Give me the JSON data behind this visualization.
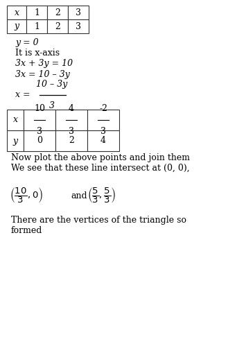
{
  "bg_color": "#ffffff",
  "table1_row1": [
    "x",
    "1",
    "2",
    "3"
  ],
  "table1_row2": [
    "y",
    "1",
    "2",
    "3"
  ],
  "table2_row1_fracs": [
    [
      "10",
      "3"
    ],
    [
      "4",
      "3"
    ],
    [
      "-2",
      "3"
    ]
  ],
  "table2_row2": [
    "0",
    "2",
    "4"
  ],
  "line1": "y = 0",
  "line2": "It is x-axis",
  "line3": "3x + 3y = 10",
  "line4": "3x = 10 – 3y",
  "frac_num": "10 – 3y",
  "frac_den": "3",
  "para1": "Now plot the above points and join them",
  "para2": "We see that these line intersect at (0, 0),",
  "para3": "There are the vertices of the triangle so",
  "para4": "formed"
}
